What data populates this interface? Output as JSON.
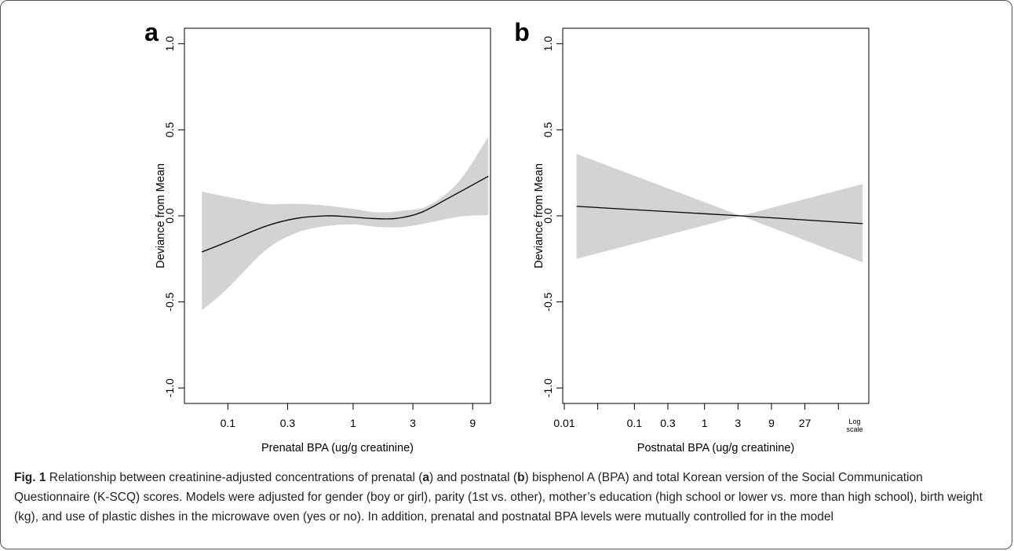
{
  "chart_data": [
    {
      "panel_label": "a",
      "type": "line",
      "xlabel": "Prenatal BPA (ug/g creatinine)",
      "ylabel": "Deviance from Mean",
      "x_scale": "log",
      "xlim": [
        0.045,
        12.5
      ],
      "ylim": [
        -1.09,
        1.09
      ],
      "x_ticks": [
        {
          "value": 0.1,
          "label": "0.1"
        },
        {
          "value": 0.3,
          "label": "0.3"
        },
        {
          "value": 1,
          "label": "1"
        },
        {
          "value": 3,
          "label": "3"
        },
        {
          "value": 9,
          "label": "9"
        }
      ],
      "y_ticks": [
        {
          "value": -1.0,
          "label": "-1.0"
        },
        {
          "value": -0.5,
          "label": "-0.5"
        },
        {
          "value": 0.0,
          "label": "0.0"
        },
        {
          "value": 0.5,
          "label": "0.5"
        },
        {
          "value": 1.0,
          "label": "1.0"
        }
      ],
      "x_note": "",
      "fit": [
        {
          "x": 0.062,
          "y": -0.21
        },
        {
          "x": 0.1,
          "y": -0.15
        },
        {
          "x": 0.2,
          "y": -0.06
        },
        {
          "x": 0.35,
          "y": -0.015
        },
        {
          "x": 0.6,
          "y": 0.0
        },
        {
          "x": 0.9,
          "y": -0.005
        },
        {
          "x": 1.4,
          "y": -0.015
        },
        {
          "x": 2.2,
          "y": -0.015
        },
        {
          "x": 3.5,
          "y": 0.02
        },
        {
          "x": 6,
          "y": 0.11
        },
        {
          "x": 12,
          "y": 0.23
        }
      ],
      "band_upper": [
        {
          "x": 0.062,
          "y": 0.14
        },
        {
          "x": 0.1,
          "y": 0.11
        },
        {
          "x": 0.2,
          "y": 0.07
        },
        {
          "x": 0.35,
          "y": 0.07
        },
        {
          "x": 0.6,
          "y": 0.06
        },
        {
          "x": 1.0,
          "y": 0.04
        },
        {
          "x": 1.6,
          "y": 0.02
        },
        {
          "x": 2.5,
          "y": 0.03
        },
        {
          "x": 4.0,
          "y": 0.06
        },
        {
          "x": 7,
          "y": 0.2
        },
        {
          "x": 12,
          "y": 0.46
        }
      ],
      "band_lower": [
        {
          "x": 0.062,
          "y": -0.55
        },
        {
          "x": 0.1,
          "y": -0.42
        },
        {
          "x": 0.2,
          "y": -0.2
        },
        {
          "x": 0.35,
          "y": -0.1
        },
        {
          "x": 0.6,
          "y": -0.06
        },
        {
          "x": 1.0,
          "y": -0.05
        },
        {
          "x": 1.6,
          "y": -0.065
        },
        {
          "x": 2.5,
          "y": -0.065
        },
        {
          "x": 4.0,
          "y": -0.04
        },
        {
          "x": 7,
          "y": -0.005
        },
        {
          "x": 12,
          "y": 0.005
        }
      ]
    },
    {
      "panel_label": "b",
      "type": "line",
      "xlabel": "Postnatal BPA (ug/g creatinine)",
      "ylabel": "Deviance from Mean",
      "x_scale": "log",
      "xlim": [
        0.0095,
        220
      ],
      "ylim": [
        -1.09,
        1.09
      ],
      "x_ticks": [
        {
          "value": 0.01,
          "label": "0.01"
        },
        {
          "value": 0.03,
          "label": ""
        },
        {
          "value": 0.1,
          "label": "0.1"
        },
        {
          "value": 0.3,
          "label": "0.3"
        },
        {
          "value": 1,
          "label": "1"
        },
        {
          "value": 3,
          "label": "3"
        },
        {
          "value": 9,
          "label": "9"
        },
        {
          "value": 27,
          "label": "27"
        },
        {
          "value": 81,
          "label": ""
        }
      ],
      "y_ticks": [
        {
          "value": -1.0,
          "label": "-1.0"
        },
        {
          "value": -0.5,
          "label": "-0.5"
        },
        {
          "value": 0.0,
          "label": "0.0"
        },
        {
          "value": 0.5,
          "label": "0.5"
        },
        {
          "value": 1.0,
          "label": "1.0"
        }
      ],
      "x_note": [
        "Log",
        "scale"
      ],
      "fit": [
        {
          "x": 0.015,
          "y": 0.055
        },
        {
          "x": 3.3,
          "y": 0.0
        },
        {
          "x": 180,
          "y": -0.045
        }
      ],
      "band_upper": [
        {
          "x": 0.015,
          "y": 0.36
        },
        {
          "x": 3.3,
          "y": 0.0
        },
        {
          "x": 180,
          "y": 0.185
        }
      ],
      "band_lower": [
        {
          "x": 0.015,
          "y": -0.25
        },
        {
          "x": 3.3,
          "y": 0.0
        },
        {
          "x": 180,
          "y": -0.27
        }
      ]
    }
  ],
  "colors": {
    "band": "#d3d3d3",
    "line": "#000000",
    "axis": "#000000"
  },
  "caption": {
    "fig_label": "Fig. 1",
    "text_1": " Relationship between creatinine-adjusted concentrations of prenatal (",
    "bold_a": "a",
    "text_2": ") and postnatal (",
    "bold_b": "b",
    "text_3": ") bisphenol A (BPA) and total Korean version of the Social Communication Questionnaire (K-SCQ) scores. Models were adjusted for gender (boy or girl), parity (1st vs. other), mother’s education (high school or lower vs. more than high school), birth weight (kg), and use of plastic dishes in the microwave oven (yes or no). In addition, prenatal and postnatal BPA levels were mutually controlled for in the model"
  }
}
